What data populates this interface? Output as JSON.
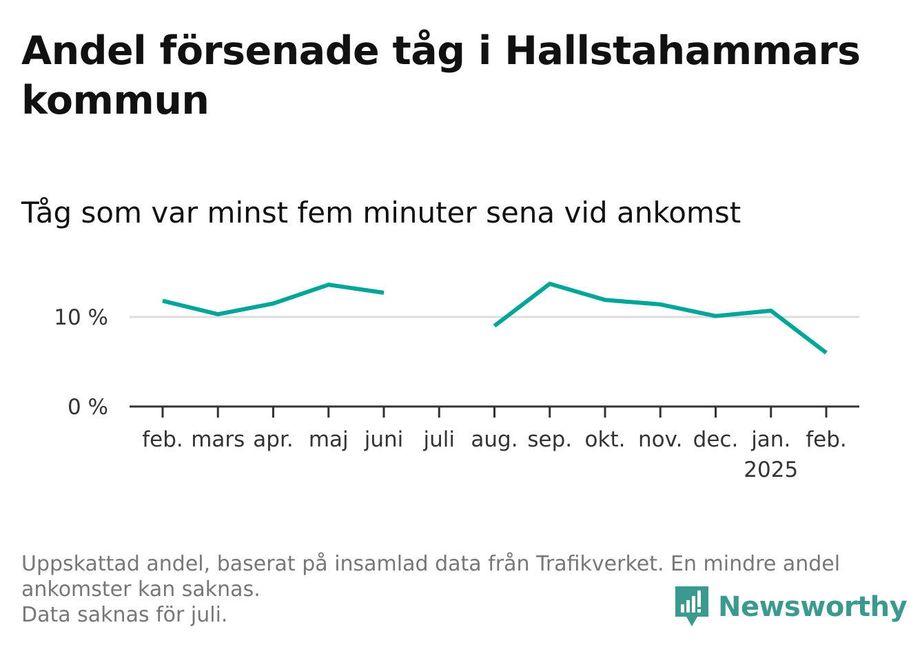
{
  "title": "Andel försenade tåg i Hallstahammars kommun",
  "subtitle": "Tåg som var minst fem minuter sena vid ankomst",
  "footnote": {
    "line1": "Uppskattad andel, baserat på insamlad data från Trafikverket. En mindre andel ankomster kan saknas.",
    "line2": "Data saknas för juli."
  },
  "logo": {
    "text": "Newsworthy",
    "color": "#3a9a8f"
  },
  "colors": {
    "line": "#00a59a",
    "grid": "#dddddd",
    "axis": "#333333"
  },
  "chart_data": {
    "type": "line",
    "categories": [
      "feb.",
      "mars",
      "apr.",
      "maj",
      "juni",
      "juli",
      "aug.",
      "sep.",
      "okt.",
      "nov.",
      "dec.",
      "jan.",
      "feb."
    ],
    "year_labels": [
      "",
      "",
      "",
      "",
      "",
      "",
      "",
      "",
      "",
      "",
      "",
      "2025",
      ""
    ],
    "series": [
      {
        "values": [
          11.8,
          10.3,
          11.5,
          13.6,
          12.7,
          null,
          9.0,
          13.7,
          11.9,
          11.4,
          10.1,
          10.7,
          6.0
        ]
      }
    ],
    "ylim": [
      0,
      15
    ],
    "yticks": [
      0,
      10
    ],
    "ytick_labels": [
      "0 %",
      "10 %"
    ],
    "title": "Andel försenade tåg i Hallstahammars kommun",
    "xlabel": "",
    "ylabel": "",
    "grid": true,
    "legend": "none"
  }
}
